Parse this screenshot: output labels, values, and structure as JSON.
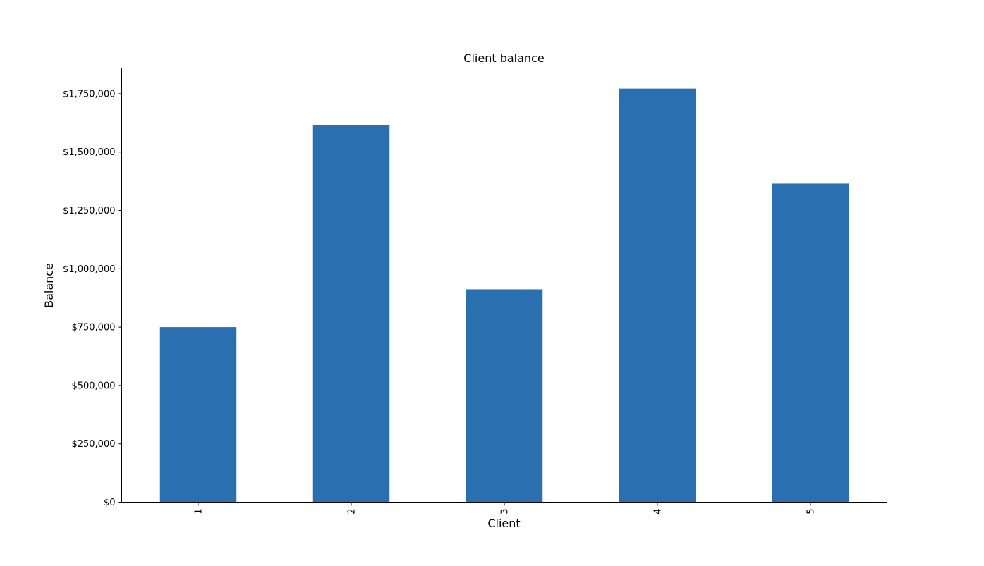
{
  "chart_data": {
    "type": "bar",
    "title": "Client balance",
    "xlabel": "Client",
    "ylabel": "Balance",
    "categories": [
      "1",
      "2",
      "3",
      "4",
      "5"
    ],
    "values": [
      750000,
      1615000,
      912000,
      1772000,
      1365000
    ],
    "ylim": [
      0,
      1860000
    ],
    "yticks": [
      0,
      250000,
      500000,
      750000,
      1000000,
      1250000,
      1500000,
      1750000
    ],
    "ytick_labels": [
      "$0",
      "$250,000",
      "$500,000",
      "$750,000",
      "$1,000,000",
      "$1,250,000",
      "$1,500,000",
      "$1,750,000"
    ],
    "xtick_rotation": "vertical",
    "grid": false,
    "legend": "none",
    "bar_color": "#2a6fb0"
  }
}
